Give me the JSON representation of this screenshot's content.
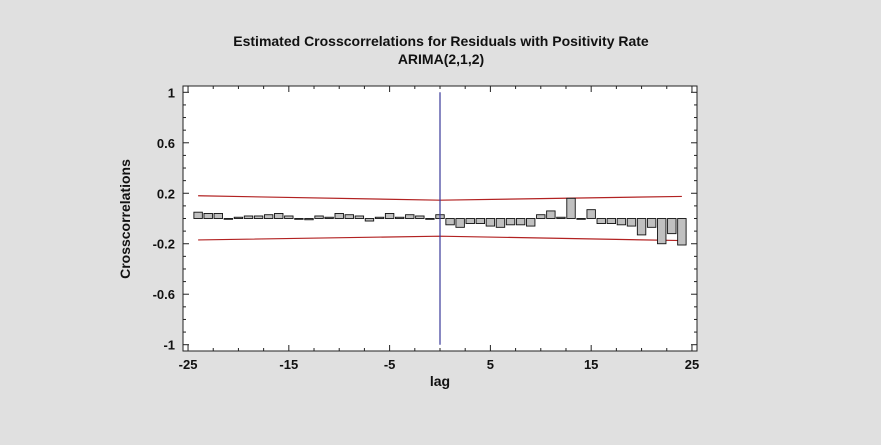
{
  "chart_data": {
    "type": "bar",
    "title": "Estimated Crosscorrelations for Residuals with Positivity Rate",
    "subtitle": "ARIMA(2,1,2)",
    "xlabel": "lag",
    "ylabel": "Crosscorrelations",
    "xlim": [
      -25.5,
      25.5
    ],
    "ylim": [
      -1.05,
      1.05
    ],
    "xticks": [
      -25,
      -15,
      -5,
      5,
      15,
      25
    ],
    "xtick_labels": [
      "-25",
      "-15",
      "-5",
      "5",
      "15",
      "25"
    ],
    "yticks": [
      1,
      0.6,
      0.2,
      -0.2,
      -0.6,
      -1
    ],
    "ytick_labels": [
      "1",
      "0.6",
      "0.2",
      "-0.2",
      "-0.6",
      "-1"
    ],
    "x": [
      -24,
      -23,
      -22,
      -21,
      -20,
      -19,
      -18,
      -17,
      -16,
      -15,
      -14,
      -13,
      -12,
      -11,
      -10,
      -9,
      -8,
      -7,
      -6,
      -5,
      -4,
      -3,
      -2,
      -1,
      0,
      1,
      2,
      3,
      4,
      5,
      6,
      7,
      8,
      9,
      10,
      11,
      12,
      13,
      14,
      15,
      16,
      17,
      18,
      19,
      20,
      21,
      22,
      23,
      24
    ],
    "values": [
      0.05,
      0.04,
      0.04,
      0.0,
      0.01,
      0.02,
      0.02,
      0.03,
      0.04,
      0.02,
      0.0,
      -0.01,
      0.02,
      0.01,
      0.04,
      0.03,
      0.02,
      -0.02,
      0.01,
      0.04,
      0.01,
      0.03,
      0.02,
      0.0,
      0.03,
      -0.05,
      -0.07,
      -0.04,
      -0.04,
      -0.06,
      -0.07,
      -0.05,
      -0.05,
      -0.06,
      0.03,
      0.06,
      0.01,
      0.16,
      0.0,
      0.07,
      -0.04,
      -0.04,
      -0.05,
      -0.06,
      -0.13,
      -0.07,
      -0.2,
      -0.12,
      -0.21
    ],
    "upper_limit": {
      "x": [
        -24,
        0,
        24
      ],
      "y": [
        0.18,
        0.145,
        0.175
      ]
    },
    "lower_limit": {
      "x": [
        -24,
        0,
        24
      ],
      "y": [
        -0.17,
        -0.14,
        -0.175
      ]
    },
    "zero_line_x": 0,
    "grid": false,
    "colors": {
      "background": "#e0e0e0",
      "plot_area": "#ffffff",
      "bar_fill": "#c0c0c0",
      "bar_stroke": "#111111",
      "limit_line": "#b22222",
      "zero_line": "#3a3a9a"
    }
  }
}
